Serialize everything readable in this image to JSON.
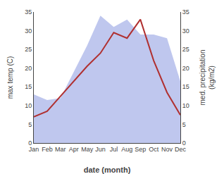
{
  "chart_data": {
    "type": "line",
    "categories": [
      "Jan",
      "Feb",
      "Mar",
      "Apr",
      "May",
      "Jun",
      "Jul",
      "Aug",
      "Sep",
      "Oct",
      "Nov",
      "Dec"
    ],
    "xlabel": "date (month)",
    "ylabel": "max temp (C)",
    "y2label": "med. precipitation\n(kg/m2)",
    "ylim": [
      0,
      35
    ],
    "yticks": [
      0,
      5,
      10,
      15,
      20,
      25,
      30,
      35
    ],
    "y2lim": [
      0,
      35
    ],
    "y2ticks": [
      0,
      5,
      10,
      15,
      20,
      25,
      30,
      35
    ],
    "grid": false,
    "series": [
      {
        "type": "area",
        "axis": "y2",
        "color": "#aab4e8",
        "values": [
          13.0,
          11.5,
          12.0,
          19.0,
          26.0,
          34.0,
          31.0,
          33.0,
          29.0,
          29.0,
          28.0,
          16.5
        ]
      },
      {
        "type": "line",
        "color": "#b03030",
        "values": [
          7.0,
          8.5,
          12.5,
          16.5,
          20.5,
          24.0,
          29.5,
          28.0,
          33.0,
          22.0,
          13.5,
          7.5
        ]
      }
    ]
  }
}
